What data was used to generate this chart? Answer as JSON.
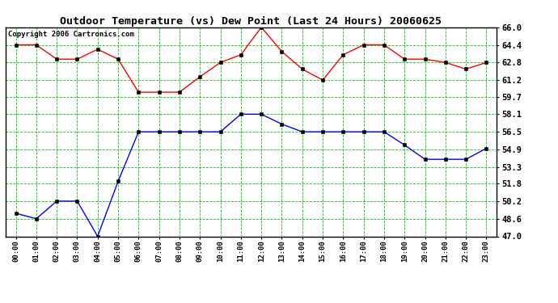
{
  "title": "Outdoor Temperature (vs) Dew Point (Last 24 Hours) 20060625",
  "copyright": "Copyright 2006 Cartronics.com",
  "hours": [
    "00:00",
    "01:00",
    "02:00",
    "03:00",
    "04:00",
    "05:00",
    "06:00",
    "07:00",
    "08:00",
    "09:00",
    "10:00",
    "11:00",
    "12:00",
    "13:00",
    "14:00",
    "15:00",
    "16:00",
    "17:00",
    "18:00",
    "19:00",
    "20:00",
    "21:00",
    "22:00",
    "23:00"
  ],
  "temp": [
    64.4,
    64.4,
    63.1,
    63.1,
    64.0,
    63.1,
    60.1,
    60.1,
    60.1,
    61.5,
    62.8,
    63.5,
    66.0,
    63.8,
    62.2,
    61.2,
    63.5,
    64.4,
    64.4,
    63.1,
    63.1,
    62.8,
    62.2,
    62.8
  ],
  "dew": [
    49.1,
    48.6,
    50.2,
    50.2,
    47.0,
    52.0,
    56.5,
    56.5,
    56.5,
    56.5,
    56.5,
    58.1,
    58.1,
    57.2,
    56.5,
    56.5,
    56.5,
    56.5,
    56.5,
    55.3,
    54.0,
    54.0,
    54.0,
    55.0
  ],
  "ylim_min": 47.0,
  "ylim_max": 66.0,
  "yticks": [
    47.0,
    48.6,
    50.2,
    51.8,
    53.3,
    54.9,
    56.5,
    58.1,
    59.7,
    61.2,
    62.8,
    64.4,
    66.0
  ],
  "ytick_labels": [
    "47.0",
    "48.6",
    "50.2",
    "51.8",
    "53.3",
    "54.9",
    "56.5",
    "58.1",
    "59.7",
    "61.2",
    "62.8",
    "64.4",
    "66.0"
  ],
  "bg_color": "#ffffff",
  "grid_color": "#00cc00",
  "temp_color": "#ff0000",
  "dew_color": "#0000ff",
  "title_fontsize": 9.5,
  "copyright_fontsize": 6.5,
  "tick_fontsize": 6.5,
  "ytick_fontsize": 7.5
}
